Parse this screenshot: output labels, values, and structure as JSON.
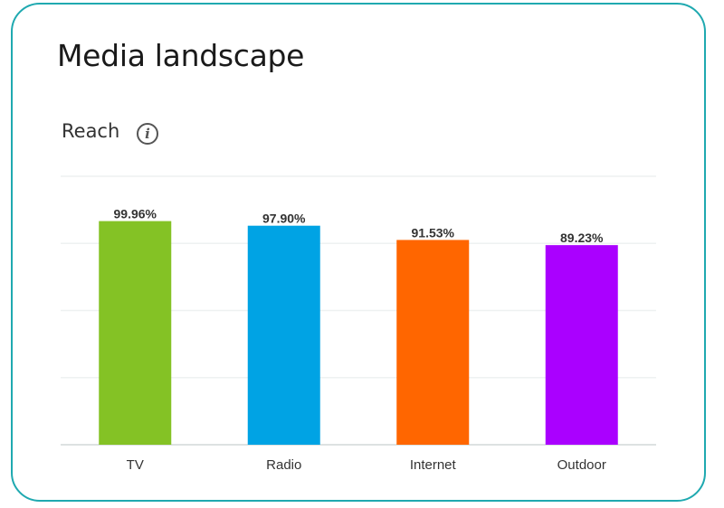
{
  "card": {
    "title": "Media landscape",
    "subtitle": "Reach",
    "info_icon": "info-icon"
  },
  "chart_data": {
    "type": "bar",
    "categories": [
      "TV",
      "Radio",
      "Internet",
      "Outdoor"
    ],
    "values": [
      99.96,
      97.9,
      91.53,
      89.23
    ],
    "labels": [
      "99.96%",
      "97.90%",
      "91.53%",
      "89.23%"
    ],
    "colors": [
      "#84c225",
      "#00a3e4",
      "#ff6600",
      "#aa00ff"
    ],
    "title": "",
    "xlabel": "",
    "ylabel": "",
    "ylim": [
      0,
      120
    ],
    "grid": true
  }
}
